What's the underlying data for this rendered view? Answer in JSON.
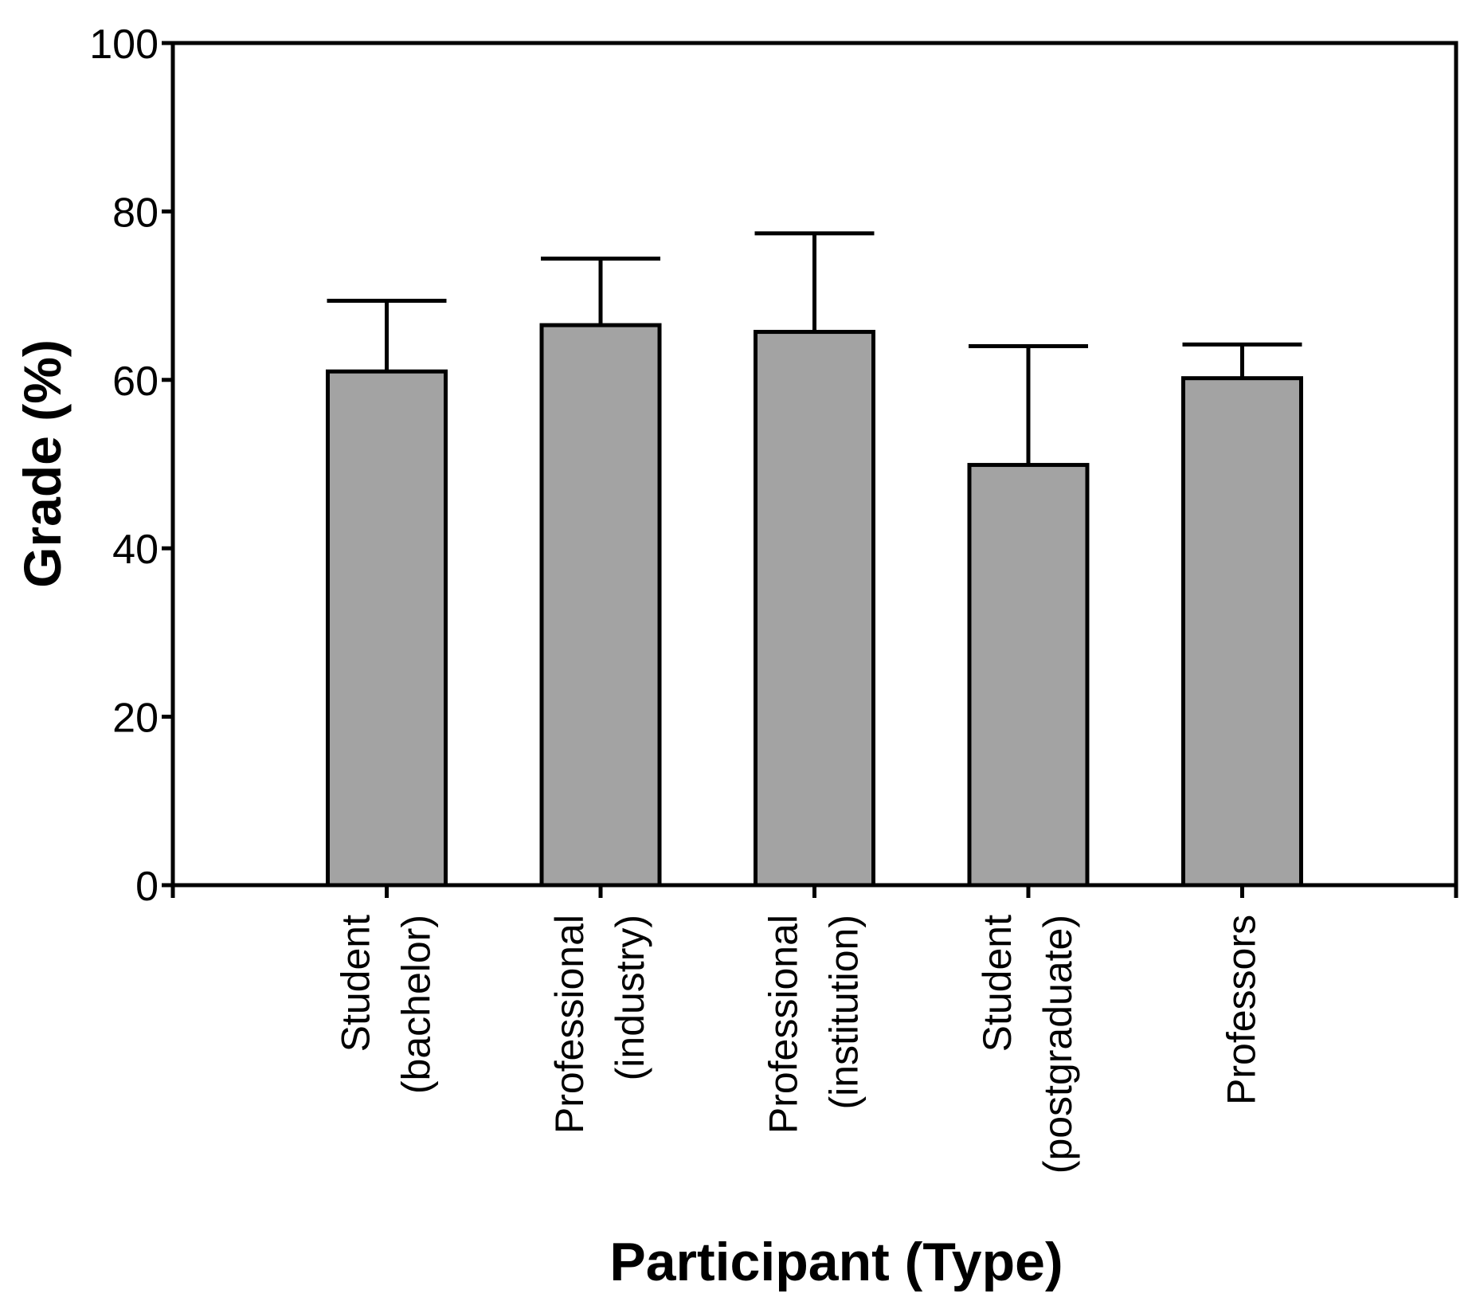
{
  "chart_data": {
    "type": "bar",
    "xlabel": "Participant (Type)",
    "ylabel": "Grade (%)",
    "ylim": [
      0,
      100
    ],
    "yticks": [
      "0",
      "20",
      "40",
      "60",
      "80",
      "100"
    ],
    "grid": false,
    "legend": "none",
    "colors": {
      "bar_fill": "#a3a3a3",
      "bar_stroke": "#000000",
      "axis": "#000000"
    },
    "categories": [
      [
        "Student",
        "(bachelor)"
      ],
      [
        "Professional",
        "(industry)"
      ],
      [
        "Professional",
        "(institution)"
      ],
      [
        "Student",
        "(postgraduate)"
      ],
      [
        "Professors"
      ]
    ],
    "values": [
      61,
      66.5,
      65.7,
      49.9,
      60.2
    ],
    "error_upper": [
      69.4,
      74.4,
      77.4,
      64.0,
      64.2
    ]
  }
}
